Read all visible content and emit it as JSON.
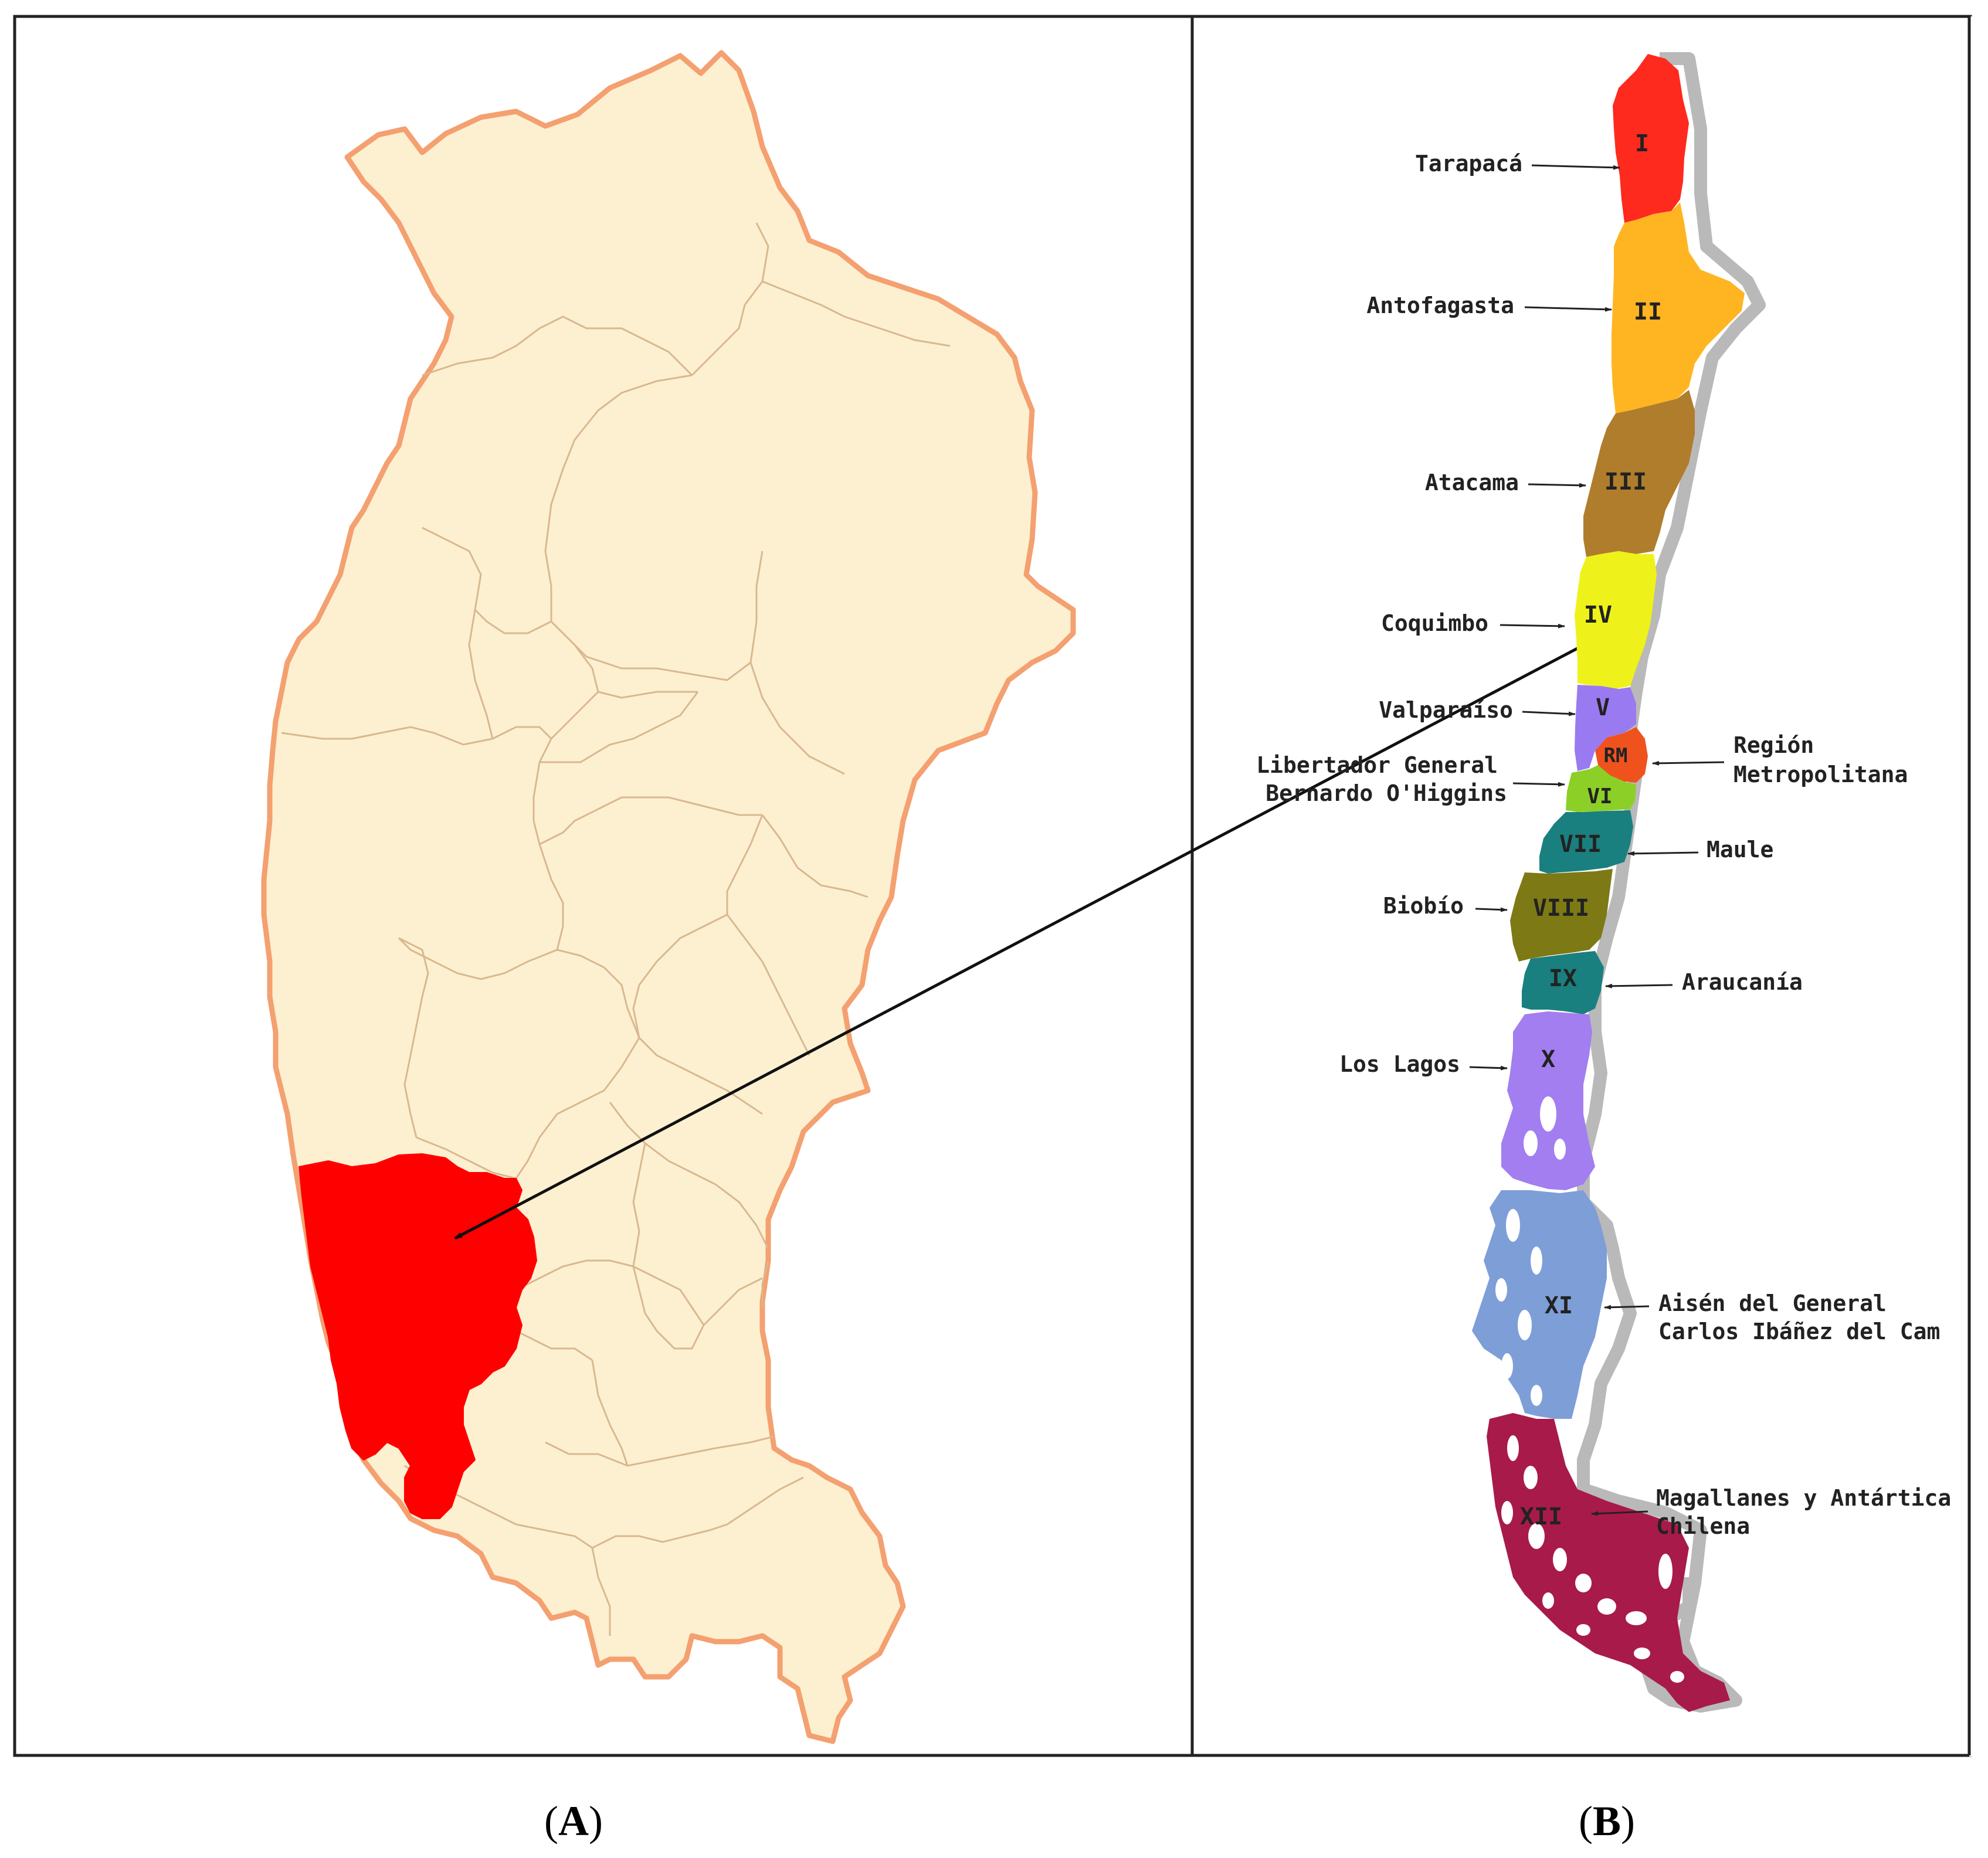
{
  "panels": {
    "a_letter": "A",
    "b_letter": "B"
  },
  "colors": {
    "province_fill": "#fdf0d0",
    "province_outline": "#f4a070",
    "highlight": "#ff0000",
    "frame": "#222222",
    "arrow": "#111111"
  },
  "regions": [
    {
      "numeral": "I",
      "name": [
        "Tarapacá"
      ],
      "color": "#ff2a1e"
    },
    {
      "numeral": "II",
      "name": [
        "Antofagasta"
      ],
      "color": "#ffb522"
    },
    {
      "numeral": "III",
      "name": [
        "Atacama"
      ],
      "color": "#b07d2c"
    },
    {
      "numeral": "IV",
      "name": [
        "Coquimbo"
      ],
      "color": "#eef21a"
    },
    {
      "numeral": "V",
      "name": [
        "Valparaíso"
      ],
      "color": "#9a7af0"
    },
    {
      "numeral": "RM",
      "name": [
        "Región",
        "Metropolitana"
      ],
      "color": "#f0521e"
    },
    {
      "numeral": "VI",
      "name": [
        "Libertador General",
        "Bernardo O'Higgins"
      ],
      "color": "#8ccf26"
    },
    {
      "numeral": "VII",
      "name": [
        "Maule"
      ],
      "color": "#1a7f7f"
    },
    {
      "numeral": "VIII",
      "name": [
        "Biobío"
      ],
      "color": "#7d7a16"
    },
    {
      "numeral": "IX",
      "name": [
        "Araucanía"
      ],
      "color": "#1a7f7f"
    },
    {
      "numeral": "X",
      "name": [
        "Los Lagos"
      ],
      "color": "#a27ef0"
    },
    {
      "numeral": "XI",
      "name": [
        "Aisén del General",
        "Carlos Ibáñez del Cam"
      ],
      "color": "#7e9ed8"
    },
    {
      "numeral": "XII",
      "name": [
        "Magallanes y Antártica",
        "Chilena"
      ],
      "color": "#a81a4a"
    }
  ]
}
